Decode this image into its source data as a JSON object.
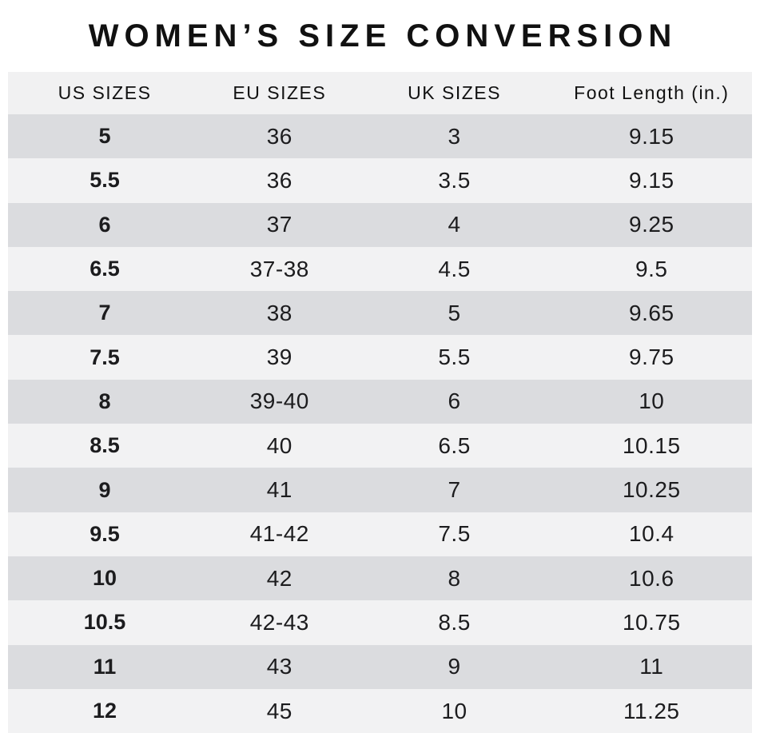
{
  "title": "WOMEN’S SIZE CONVERSION",
  "table": {
    "headers": [
      "US SIZES",
      "EU SIZES",
      "UK SIZES",
      "Foot Length (in.)"
    ],
    "rows": [
      [
        "5",
        "36",
        "3",
        "9.15"
      ],
      [
        "5.5",
        "36",
        "3.5",
        "9.15"
      ],
      [
        "6",
        "37",
        "4",
        "9.25"
      ],
      [
        "6.5",
        "37-38",
        "4.5",
        "9.5"
      ],
      [
        "7",
        "38",
        "5",
        "9.65"
      ],
      [
        "7.5",
        "39",
        "5.5",
        "9.75"
      ],
      [
        "8",
        "39-40",
        "6",
        "10"
      ],
      [
        "8.5",
        "40",
        "6.5",
        "10.15"
      ],
      [
        "9",
        "41",
        "7",
        "10.25"
      ],
      [
        "9.5",
        "41-42",
        "7.5",
        "10.4"
      ],
      [
        "10",
        "42",
        "8",
        "10.6"
      ],
      [
        "10.5",
        "42-43",
        "8.5",
        "10.75"
      ],
      [
        "11",
        "43",
        "9",
        "11"
      ],
      [
        "12",
        "45",
        "10",
        "11.25"
      ]
    ]
  },
  "colors": {
    "row_dark": "#dbdcdf",
    "row_light": "#f2f2f3",
    "header_bg": "#f1f1f2",
    "text": "#1c1c1e",
    "title": "#111111",
    "page_bg": "#ffffff"
  }
}
